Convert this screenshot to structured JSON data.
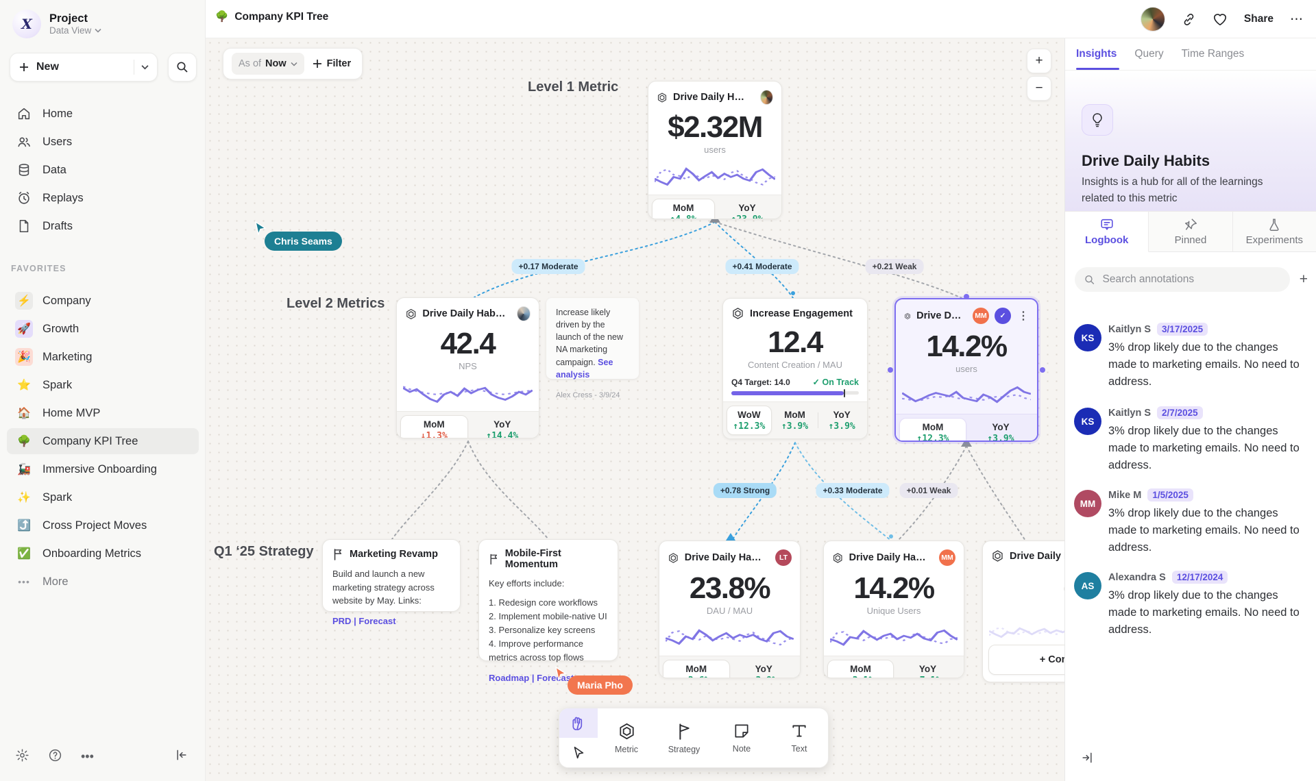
{
  "accent_color": "#5b4fe0",
  "sidebar": {
    "project_title": "Project",
    "project_subtitle": "Data View",
    "new_button": "New",
    "nav": [
      {
        "label": "Home"
      },
      {
        "label": "Users"
      },
      {
        "label": "Data"
      },
      {
        "label": "Replays"
      },
      {
        "label": "Drafts"
      }
    ],
    "favorites_label": "FAVORITES",
    "favorites": [
      {
        "label": "Company",
        "emoji": "⚡",
        "tile": "#ebebe9"
      },
      {
        "label": "Growth",
        "emoji": "🚀",
        "tile": "#e4ddfb"
      },
      {
        "label": "Marketing",
        "emoji": "🎉",
        "tile": "#fcdcd4"
      },
      {
        "label": "Spark",
        "emoji": "⭐",
        "tile": "transparent"
      },
      {
        "label": "Home MVP",
        "emoji": "🏠",
        "tile": "transparent"
      },
      {
        "label": "Company KPI Tree",
        "emoji": "🌳",
        "tile": "transparent"
      },
      {
        "label": "Immersive Onboarding",
        "emoji": "🚂",
        "tile": "transparent"
      },
      {
        "label": "Spark",
        "emoji": "✨",
        "tile": "transparent"
      },
      {
        "label": "Cross Project Moves",
        "emoji": "⤴️",
        "tile": "transparent"
      },
      {
        "label": "Onboarding Metrics",
        "emoji": "✅",
        "tile": "transparent"
      }
    ],
    "more_label": "More"
  },
  "topbar": {
    "doc_emoji": "🌳",
    "doc_title": "Company KPI Tree",
    "share_label": "Share",
    "more_glyph": "⋯"
  },
  "canvas": {
    "asof_label": "As of",
    "asof_value": "Now",
    "filter_label": "Filter",
    "zoom_in": "+",
    "zoom_out": "−",
    "tier_labels": {
      "level1": "Level 1 Metric",
      "level2": "Level 2 Metrics",
      "strategy": "Q1 ‘25 Strategy"
    },
    "cursors": [
      {
        "name": "Chris Seams",
        "color": "#1d7f93"
      },
      {
        "name": "Maria Pho",
        "color": "#f2764e"
      }
    ],
    "edge_chips": [
      {
        "label": "+0.17 Moderate",
        "tone": "moderate"
      },
      {
        "label": "+0.41 Moderate",
        "tone": "moderate"
      },
      {
        "label": "+0.21 Weak",
        "tone": "weak"
      },
      {
        "label": "+0.78 Strong",
        "tone": "strong"
      },
      {
        "label": "+0.33 Moderate",
        "tone": "moderate"
      },
      {
        "label": "+0.01 Weak",
        "tone": "weak"
      }
    ],
    "cards": [
      {
        "title": "Drive Daily Habbits",
        "value": "$2.32M",
        "unit": "users",
        "stats": [
          {
            "label": "MoM",
            "value": "↑4.8%",
            "trend": "up"
          },
          {
            "label": "YoY",
            "value": "↑23.9%",
            "trend": "up"
          }
        ],
        "spark_solid": [
          40,
          30,
          22,
          45,
          40,
          70,
          55,
          35,
          48,
          60,
          42,
          55,
          45,
          52,
          40,
          34,
          60,
          68,
          52,
          38
        ],
        "spark_dotted": [
          30,
          62,
          68,
          52,
          48,
          38,
          55,
          45,
          40,
          50,
          44,
          38,
          58,
          64,
          48,
          40,
          28,
          22,
          40,
          46
        ]
      },
      {
        "title": "Drive Daily Habbits",
        "value": "42.4",
        "unit": "NPS",
        "stats": [
          {
            "label": "MoM",
            "value": "↓1.3%",
            "trend": "down"
          },
          {
            "label": "YoY",
            "value": "↑14.4%",
            "trend": "up"
          }
        ],
        "spark_solid": [
          62,
          50,
          58,
          42,
          28,
          20,
          42,
          50,
          38,
          60,
          46,
          56,
          62,
          42,
          32,
          26,
          36,
          50,
          42,
          55
        ],
        "spark_dotted": [
          66,
          58,
          52,
          48,
          44,
          42,
          46,
          48,
          44,
          50,
          54,
          58,
          52,
          48,
          44,
          42,
          46,
          50,
          52,
          55
        ]
      },
      {
        "title": "Increase Engagement",
        "value": "12.4",
        "unit": "Content Creation / MAU",
        "target_label": "Q4 Target: 14.0",
        "status": "On Track",
        "progress_pct": 88,
        "stats": [
          {
            "label": "WoW",
            "value": "↑12.3%",
            "trend": "up"
          },
          {
            "label": "MoM",
            "value": "↑3.9%",
            "trend": "up"
          },
          {
            "label": "YoY",
            "value": "↑3.9%",
            "trend": "up"
          }
        ]
      },
      {
        "title": "Drive Daily Habb..",
        "value": "14.2%",
        "unit": "users",
        "owner_badge": "MM",
        "owner_color": "#f1714c",
        "stats": [
          {
            "label": "MoM",
            "value": "↑12.3%",
            "trend": "up"
          },
          {
            "label": "YoY",
            "value": "↑3.9%",
            "trend": "up"
          }
        ],
        "spark_solid": [
          55,
          42,
          30,
          38,
          48,
          55,
          50,
          45,
          58,
          40,
          35,
          30,
          50,
          42,
          28,
          45,
          62,
          72,
          58,
          52
        ],
        "spark_dotted": [
          38,
          35,
          30,
          34,
          40,
          44,
          42,
          46,
          40,
          36,
          42,
          38,
          34,
          40,
          44,
          42,
          46,
          50,
          40,
          35
        ]
      },
      {
        "title": "Drive Daily Habbits",
        "value": "23.8%",
        "unit": "DAU / MAU",
        "owner_badge": "LT",
        "owner_color": "#b5495b",
        "stats": [
          {
            "label": "MoM",
            "value": "↑2.6%",
            "trend": "up"
          },
          {
            "label": "YoY",
            "value": "↑3.9%",
            "trend": "up"
          }
        ],
        "spark_solid": [
          45,
          38,
          28,
          50,
          42,
          68,
          55,
          38,
          50,
          60,
          45,
          55,
          48,
          55,
          42,
          35,
          60,
          66,
          50,
          42
        ],
        "spark_dotted": [
          35,
          62,
          66,
          50,
          46,
          40,
          52,
          44,
          40,
          48,
          42,
          36,
          55,
          62,
          46,
          40,
          30,
          25,
          40,
          45
        ]
      },
      {
        "title": "Drive Daily Habbits",
        "value": "14.2%",
        "unit": "Unique Users",
        "owner_badge": "MM",
        "owner_color": "#f1714c",
        "stats": [
          {
            "label": "MoM",
            "value": "↑3.1%",
            "trend": "up"
          },
          {
            "label": "YoY",
            "value": "↑7.1%",
            "trend": "up"
          }
        ],
        "spark_solid": [
          42,
          35,
          25,
          48,
          44,
          66,
          52,
          40,
          52,
          58,
          42,
          52,
          46,
          58,
          44,
          38,
          62,
          68,
          52,
          40
        ],
        "spark_dotted": [
          32,
          60,
          64,
          48,
          44,
          38,
          50,
          46,
          42,
          50,
          44,
          38,
          52,
          60,
          48,
          42,
          32,
          28,
          42,
          46
        ]
      },
      {
        "title": "Drive Daily Habbits",
        "connect_label": "+ Connect",
        "spark_solid": [
          50,
          40,
          32,
          46,
          42,
          58,
          50,
          40,
          50,
          56,
          44,
          52,
          46,
          54,
          44,
          40,
          58,
          62,
          50,
          44
        ],
        "spark_dotted": [
          36,
          56,
          60,
          48,
          44,
          40,
          50,
          46,
          42,
          48,
          44,
          40,
          52,
          58,
          46,
          42,
          34,
          30,
          42,
          46
        ]
      }
    ],
    "note": {
      "text": "Increase likely driven by the launch of the new NA marketing campaign.",
      "link": "See analysis",
      "author": "Alex Cress - 3/9/24"
    },
    "strategies": [
      {
        "title": "Marketing Revamp",
        "body": "Build and launch a new marketing strategy across website by May. Links:",
        "link1": "PRD",
        "divider": "|",
        "link2": "Forecast"
      },
      {
        "title": "Mobile-First Momentum",
        "body": "Key efforts include:",
        "items": [
          "1. Redesign core workflows",
          "2. Implement mobile-native UI",
          "3. Personalize key screens",
          "4. Improve performance metrics across top flows"
        ],
        "link1": "Roadmap",
        "divider": "|",
        "link2": "Forecast"
      }
    ],
    "toolbar": [
      {
        "label": "Metric"
      },
      {
        "label": "Strategy"
      },
      {
        "label": "Note"
      },
      {
        "label": "Text"
      }
    ]
  },
  "panel": {
    "tabs": [
      "Insights",
      "Query",
      "Time Ranges"
    ],
    "hero_title": "Drive Daily Habits",
    "hero_desc": "Insights is a hub for all of the learnings related to this metric",
    "log_tabs": [
      "Logbook",
      "Pinned",
      "Experiments"
    ],
    "search_placeholder": "Search annotations",
    "add_glyph": "+",
    "annotations": [
      {
        "initials": "KS",
        "name": "Kaitlyn S",
        "date": "3/17/2025",
        "color": "#1b2cb5",
        "text": "3% drop likely due to the changes made to marketing emails. No need to address."
      },
      {
        "initials": "KS",
        "name": "Kaitlyn S",
        "date": "2/7/2025",
        "color": "#1b2cb5",
        "text": "3% drop likely due to the changes made to marketing emails. No need to address."
      },
      {
        "initials": "MM",
        "name": "Mike M",
        "date": "1/5/2025",
        "color": "#b04a62",
        "text": "3% drop likely due to the changes made to marketing emails. No need to address."
      },
      {
        "initials": "AS",
        "name": "Alexandra S",
        "date": "12/17/2024",
        "color": "#1f7fa0",
        "text": "3% drop likely due to the changes made to marketing emails. No need to address."
      }
    ]
  }
}
